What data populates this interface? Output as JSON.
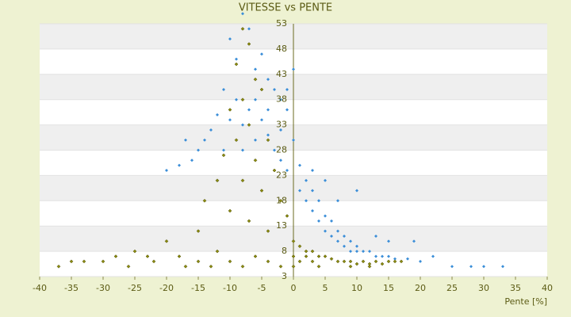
{
  "chart_data": {
    "type": "scatter",
    "title": "VITESSE vs PENTE",
    "x_label": "Pente [%]",
    "xlim": [
      -40,
      40
    ],
    "xticks": [
      -40,
      -35,
      -30,
      -25,
      -20,
      -15,
      -10,
      -5,
      0,
      5,
      10,
      15,
      20,
      25,
      30,
      35,
      40
    ],
    "ylim": [
      3,
      53
    ],
    "yticks": [
      3,
      8,
      13,
      18,
      23,
      28,
      33,
      38,
      43,
      48,
      53
    ],
    "grid": true,
    "series": [
      {
        "color": "#3b8ed8",
        "x": [
          -10,
          -9,
          -8,
          -7,
          -6,
          -5,
          -4,
          -3,
          -2,
          -1,
          -11,
          -12,
          -13,
          -14,
          -15,
          -16,
          -17,
          -18,
          -20,
          -9,
          -8,
          -7,
          -6,
          -5,
          -4,
          -3,
          -2,
          -1,
          0,
          -10,
          -11,
          -12,
          -8,
          -6,
          -4,
          -2,
          -1,
          0,
          1,
          1,
          2,
          2,
          3,
          3,
          4,
          4,
          5,
          5,
          6,
          6,
          7,
          7,
          8,
          8,
          9,
          9,
          10,
          10,
          11,
          12,
          13,
          14,
          15,
          16,
          18,
          20,
          22,
          25,
          28,
          30,
          33,
          3,
          5,
          7,
          10,
          13,
          15,
          19
        ],
        "values": [
          50,
          46,
          55,
          52,
          44,
          47,
          42,
          40,
          38,
          36,
          40,
          35,
          32,
          30,
          28,
          26,
          30,
          25,
          24,
          38,
          33,
          36,
          30,
          34,
          31,
          28,
          26,
          24,
          30,
          34,
          28,
          22,
          28,
          38,
          36,
          32,
          40,
          44,
          25,
          20,
          22,
          18,
          20,
          16,
          18,
          14,
          15,
          12,
          14,
          11,
          12,
          10,
          11,
          9,
          10,
          8,
          9,
          8,
          8,
          8,
          7,
          7,
          7,
          6.5,
          6.5,
          6,
          7,
          5,
          5,
          5,
          5,
          24,
          22,
          18,
          20,
          11,
          10,
          10
        ]
      },
      {
        "color": "#8c8c10",
        "x": [
          -8,
          -7,
          -9,
          -6,
          -5,
          -8,
          -10,
          -7,
          -4,
          -9,
          -11,
          -6,
          -3,
          -8,
          -12,
          -5,
          -14,
          -10,
          -7,
          -2,
          -1,
          -4,
          -15,
          -20,
          -25,
          -28,
          -30,
          -33,
          -35,
          -37,
          -22,
          -18,
          -15,
          -12,
          -10,
          -8,
          -6,
          -4,
          -2,
          -26,
          -23,
          -17,
          -13,
          0,
          0,
          0,
          1,
          1,
          2,
          2,
          3,
          3,
          4,
          4,
          5,
          6,
          7,
          8,
          9,
          10,
          11,
          12,
          13,
          14,
          15,
          16,
          17,
          9,
          12
        ],
        "values": [
          52,
          49,
          45,
          42,
          40,
          38,
          36,
          33,
          30,
          30,
          27,
          26,
          24,
          22,
          22,
          20,
          18,
          16,
          14,
          18,
          15,
          12,
          12,
          10,
          8,
          7,
          6,
          6,
          6,
          5,
          6,
          7,
          6,
          8,
          6,
          5,
          7,
          6,
          5,
          5,
          7,
          5,
          5,
          10,
          5,
          7,
          9,
          6,
          8,
          7,
          8,
          6,
          7,
          5,
          7,
          6.5,
          6,
          6,
          6,
          5.5,
          6,
          5.5,
          6,
          5.5,
          6,
          6,
          6,
          5,
          5
        ]
      }
    ]
  }
}
